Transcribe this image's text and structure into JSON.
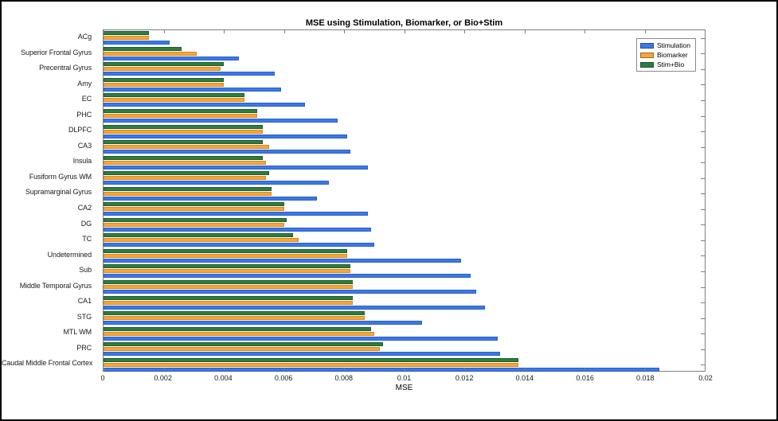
{
  "chart_data": {
    "type": "bar",
    "orientation": "horizontal",
    "title": "MSE using Stimulation, Biomarker, or Bio+Stim",
    "xlabel": "MSE",
    "xlim": [
      0,
      0.02
    ],
    "xticks": [
      0,
      0.002,
      0.004,
      0.006,
      0.008,
      0.01,
      0.012,
      0.014,
      0.016,
      0.018,
      0.02
    ],
    "xtick_labels": [
      "0",
      "0.002",
      "0.004",
      "0.006",
      "0.008",
      "0.01",
      "0.012",
      "0.014",
      "0.016",
      "0.018",
      "0.02"
    ],
    "grid": false,
    "legend": {
      "position": "top-right-inside",
      "entries": [
        {
          "name": "Stimulation",
          "color": "#3c78e8"
        },
        {
          "name": "Biomarker",
          "color": "#f6a53a"
        },
        {
          "name": "Stim+Bio",
          "color": "#2e7d40"
        }
      ]
    },
    "row_order_top_to_bottom": [
      "Stim+Bio",
      "Biomarker",
      "Stimulation"
    ],
    "categories": [
      "ACg",
      "Superior Frontal Gyrus",
      "Precentral Gyrus",
      "Amy",
      "EC",
      "PHC",
      "DLPFC",
      "CA3",
      "Insula",
      "Fusiform Gyrus WM",
      "Supramarginal Gyrus",
      "CA2",
      "DG",
      "TC",
      "Undetermined",
      "Sub",
      "Middle Temporal Gyrus",
      "CA1",
      "STG",
      "MTL WM",
      "PRC",
      "Caudal Middle Frontal Cortex"
    ],
    "series": [
      {
        "name": "Stimulation",
        "color": "#3c78e8",
        "edge": "#2a5fc0",
        "values": [
          0.0022,
          0.0045,
          0.0057,
          0.0059,
          0.0067,
          0.0078,
          0.0081,
          0.0082,
          0.0088,
          0.0075,
          0.0071,
          0.0088,
          0.0089,
          0.009,
          0.0119,
          0.0122,
          0.0124,
          0.0127,
          0.0106,
          0.0131,
          0.0132,
          0.0185
        ]
      },
      {
        "name": "Biomarker",
        "color": "#f6a53a",
        "edge": "#d88a1e",
        "values": [
          0.0015,
          0.0031,
          0.0039,
          0.004,
          0.0047,
          0.0051,
          0.0053,
          0.0055,
          0.0054,
          0.0054,
          0.0056,
          0.006,
          0.006,
          0.0065,
          0.0081,
          0.0082,
          0.0083,
          0.0083,
          0.0087,
          0.009,
          0.0092,
          0.0138
        ]
      },
      {
        "name": "Stim+Bio",
        "color": "#2e7d40",
        "edge": "#205c2e",
        "values": [
          0.0015,
          0.0026,
          0.004,
          0.004,
          0.0047,
          0.0051,
          0.0053,
          0.0053,
          0.0053,
          0.0055,
          0.0056,
          0.006,
          0.0061,
          0.0063,
          0.0081,
          0.0082,
          0.0083,
          0.0083,
          0.0087,
          0.0089,
          0.0093,
          0.0138
        ]
      }
    ]
  }
}
